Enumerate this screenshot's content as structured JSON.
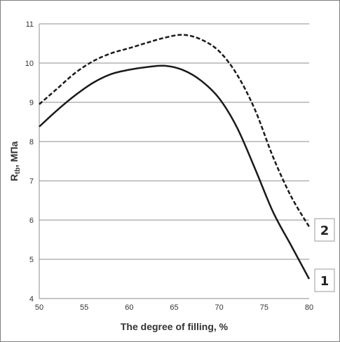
{
  "chart_data": {
    "type": "line",
    "title": "",
    "xlabel": "The degree of filling, %",
    "ylabel_main": "R",
    "ylabel_sub": "tb",
    "ylabel_rest": ", МПа",
    "xlim": [
      50,
      80
    ],
    "ylim": [
      4,
      11
    ],
    "xticks": [
      50,
      55,
      60,
      65,
      70,
      75,
      80
    ],
    "yticks": [
      4,
      5,
      6,
      7,
      8,
      9,
      10,
      11
    ],
    "grid": "horizontal",
    "series": [
      {
        "name": "1",
        "style": "solid",
        "color": "#1a1a1a",
        "x": [
          50,
          52,
          54,
          56,
          58,
          60,
          62,
          64,
          66,
          68,
          70,
          72,
          74,
          76,
          78,
          80
        ],
        "y": [
          8.38,
          8.8,
          9.18,
          9.5,
          9.72,
          9.83,
          9.9,
          9.93,
          9.82,
          9.55,
          9.1,
          8.35,
          7.3,
          6.2,
          5.35,
          4.5
        ]
      },
      {
        "name": "2",
        "style": "dashed",
        "color": "#1a1a1a",
        "x": [
          50,
          52,
          54,
          56,
          58,
          60,
          62,
          64,
          66,
          68,
          70,
          72,
          74,
          76,
          78,
          80
        ],
        "y": [
          8.95,
          9.35,
          9.75,
          10.05,
          10.25,
          10.38,
          10.52,
          10.65,
          10.72,
          10.6,
          10.3,
          9.7,
          8.8,
          7.6,
          6.6,
          5.83
        ]
      }
    ]
  }
}
